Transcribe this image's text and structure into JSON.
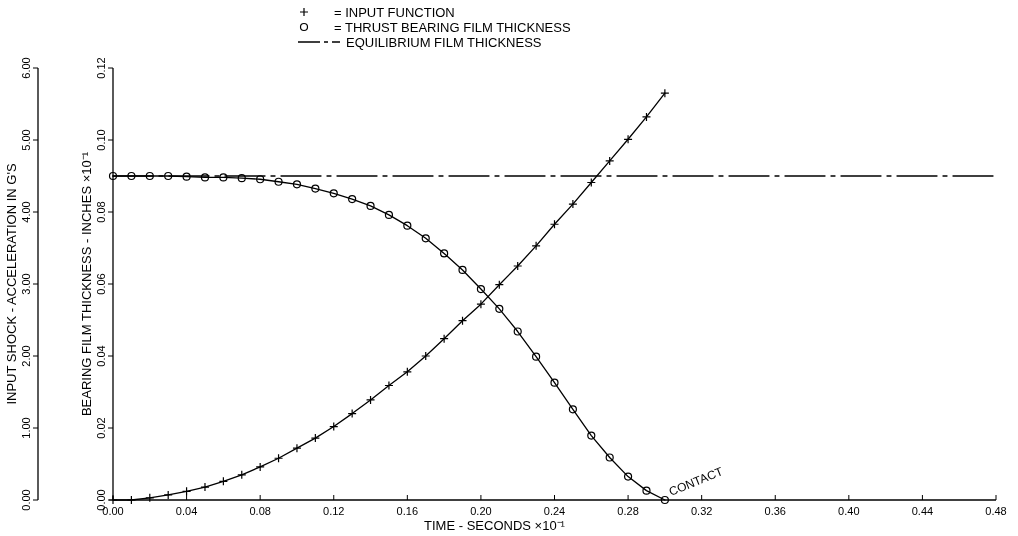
{
  "chart_data": {
    "type": "line",
    "xlabel": "TIME - SECONDS ×10⁻¹",
    "ylabel": "BEARING FILM THICKNESS - INCHES ×10⁻¹",
    "y2label": "INPUT SHOCK - ACCELERATION IN G'S",
    "xlim": [
      0,
      0.48
    ],
    "xticks": [
      {
        "value": 0,
        "label": "0.00"
      },
      {
        "value": 0.04,
        "label": "0.04"
      },
      {
        "value": 0.08,
        "label": "0.08"
      },
      {
        "value": 0.12,
        "label": "0.12"
      },
      {
        "value": 0.16,
        "label": "0.16"
      },
      {
        "value": 0.2,
        "label": "0.20"
      },
      {
        "value": 0.24,
        "label": "0.24"
      },
      {
        "value": 0.28,
        "label": "0.28"
      },
      {
        "value": 0.32,
        "label": "0.32"
      },
      {
        "value": 0.36,
        "label": "0.36"
      },
      {
        "value": 0.4,
        "label": "0.40"
      },
      {
        "value": 0.44,
        "label": "0.44"
      },
      {
        "value": 0.48,
        "label": "0.48"
      }
    ],
    "ylim": [
      0,
      0.12
    ],
    "yticks": [
      {
        "value": 0,
        "label": "0.00"
      },
      {
        "value": 0.02,
        "label": "0.02"
      },
      {
        "value": 0.04,
        "label": "0.04"
      },
      {
        "value": 0.06,
        "label": "0.06"
      },
      {
        "value": 0.08,
        "label": "0.08"
      },
      {
        "value": 0.1,
        "label": "0.10"
      },
      {
        "value": 0.12,
        "label": "0.12"
      }
    ],
    "y2lim": [
      0,
      6
    ],
    "y2ticks": [
      {
        "value": 0,
        "label": "0.00"
      },
      {
        "value": 1,
        "label": "1.00"
      },
      {
        "value": 2,
        "label": "2.00"
      },
      {
        "value": 3,
        "label": "3.00"
      },
      {
        "value": 4,
        "label": "4.00"
      },
      {
        "value": 5,
        "label": "5.00"
      },
      {
        "value": 6,
        "label": "6.00"
      }
    ],
    "grid": false,
    "legend": "top",
    "annotations": [
      {
        "text": "CONTACT",
        "x": 0.3,
        "y": 0
      }
    ],
    "series": [
      {
        "name": "= INPUT FUNCTION",
        "color": "#000000",
        "axis": "y2",
        "marker": "cross",
        "line_style": "solid",
        "x": [
          0,
          0.01,
          0.02,
          0.03,
          0.04,
          0.05,
          0.06,
          0.07,
          0.08,
          0.09,
          0.1,
          0.11,
          0.12,
          0.13,
          0.14,
          0.15,
          0.16,
          0.17,
          0.18,
          0.19,
          0.2,
          0.21,
          0.22,
          0.23,
          0.24,
          0.25,
          0.26,
          0.27,
          0.28,
          0.29,
          0.3
        ],
        "values": [
          0,
          0,
          0.03,
          0.07,
          0.12,
          0.18,
          0.26,
          0.35,
          0.46,
          0.58,
          0.72,
          0.86,
          1.02,
          1.2,
          1.39,
          1.59,
          1.78,
          2.0,
          2.24,
          2.49,
          2.72,
          2.99,
          3.25,
          3.53,
          3.83,
          4.11,
          4.41,
          4.71,
          5.01,
          5.32,
          5.65
        ]
      },
      {
        "name": "= THRUST BEARING FILM THICKNESS",
        "color": "#000000",
        "marker": "circle",
        "line_style": "solid",
        "x": [
          0,
          0.01,
          0.02,
          0.03,
          0.04,
          0.05,
          0.06,
          0.07,
          0.08,
          0.09,
          0.1,
          0.11,
          0.12,
          0.13,
          0.14,
          0.15,
          0.16,
          0.17,
          0.18,
          0.19,
          0.2,
          0.21,
          0.22,
          0.23,
          0.24,
          0.25,
          0.26,
          0.27,
          0.28,
          0.29,
          0.3
        ],
        "values": [
          0.09,
          0.09,
          0.09,
          0.09,
          0.0898,
          0.0896,
          0.0896,
          0.0894,
          0.0891,
          0.0884,
          0.0877,
          0.0865,
          0.0852,
          0.0836,
          0.0817,
          0.0792,
          0.0762,
          0.0727,
          0.0685,
          0.0639,
          0.0586,
          0.0531,
          0.0468,
          0.0398,
          0.0326,
          0.0252,
          0.0179,
          0.0118,
          0.0065,
          0.0026,
          0
        ]
      },
      {
        "name": "EQUILIBRIUM FILM THICKNESS",
        "color": "#000000",
        "marker": "none",
        "line_style": "dashed",
        "x": [
          0,
          0.48
        ],
        "values": [
          0.09,
          0.09
        ]
      }
    ]
  }
}
